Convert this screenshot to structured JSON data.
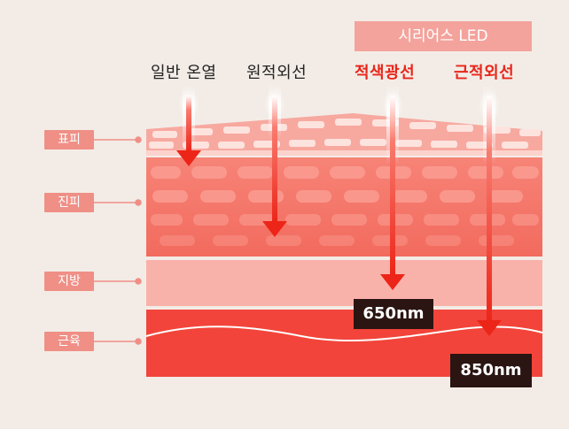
{
  "led_badge": "시리어스 LED",
  "columns": {
    "general_heat": "일반 온열",
    "far_infrared": "원적외선",
    "red_light": "적색광선",
    "near_infrared": "근적외선"
  },
  "layers": {
    "epidermis": "표피",
    "dermis": "진피",
    "fat": "지방",
    "muscle": "근육"
  },
  "wavelengths": {
    "red": "650nm",
    "nir": "850nm"
  },
  "colors": {
    "background": "#f3ece6",
    "badge": "#ef8f86",
    "led_badge": "#f3a39c",
    "arrow": "#ef2b1e",
    "highlight_text": "#e8261b",
    "dark_text": "#222222",
    "nm_label_bg": "#2a1512"
  }
}
